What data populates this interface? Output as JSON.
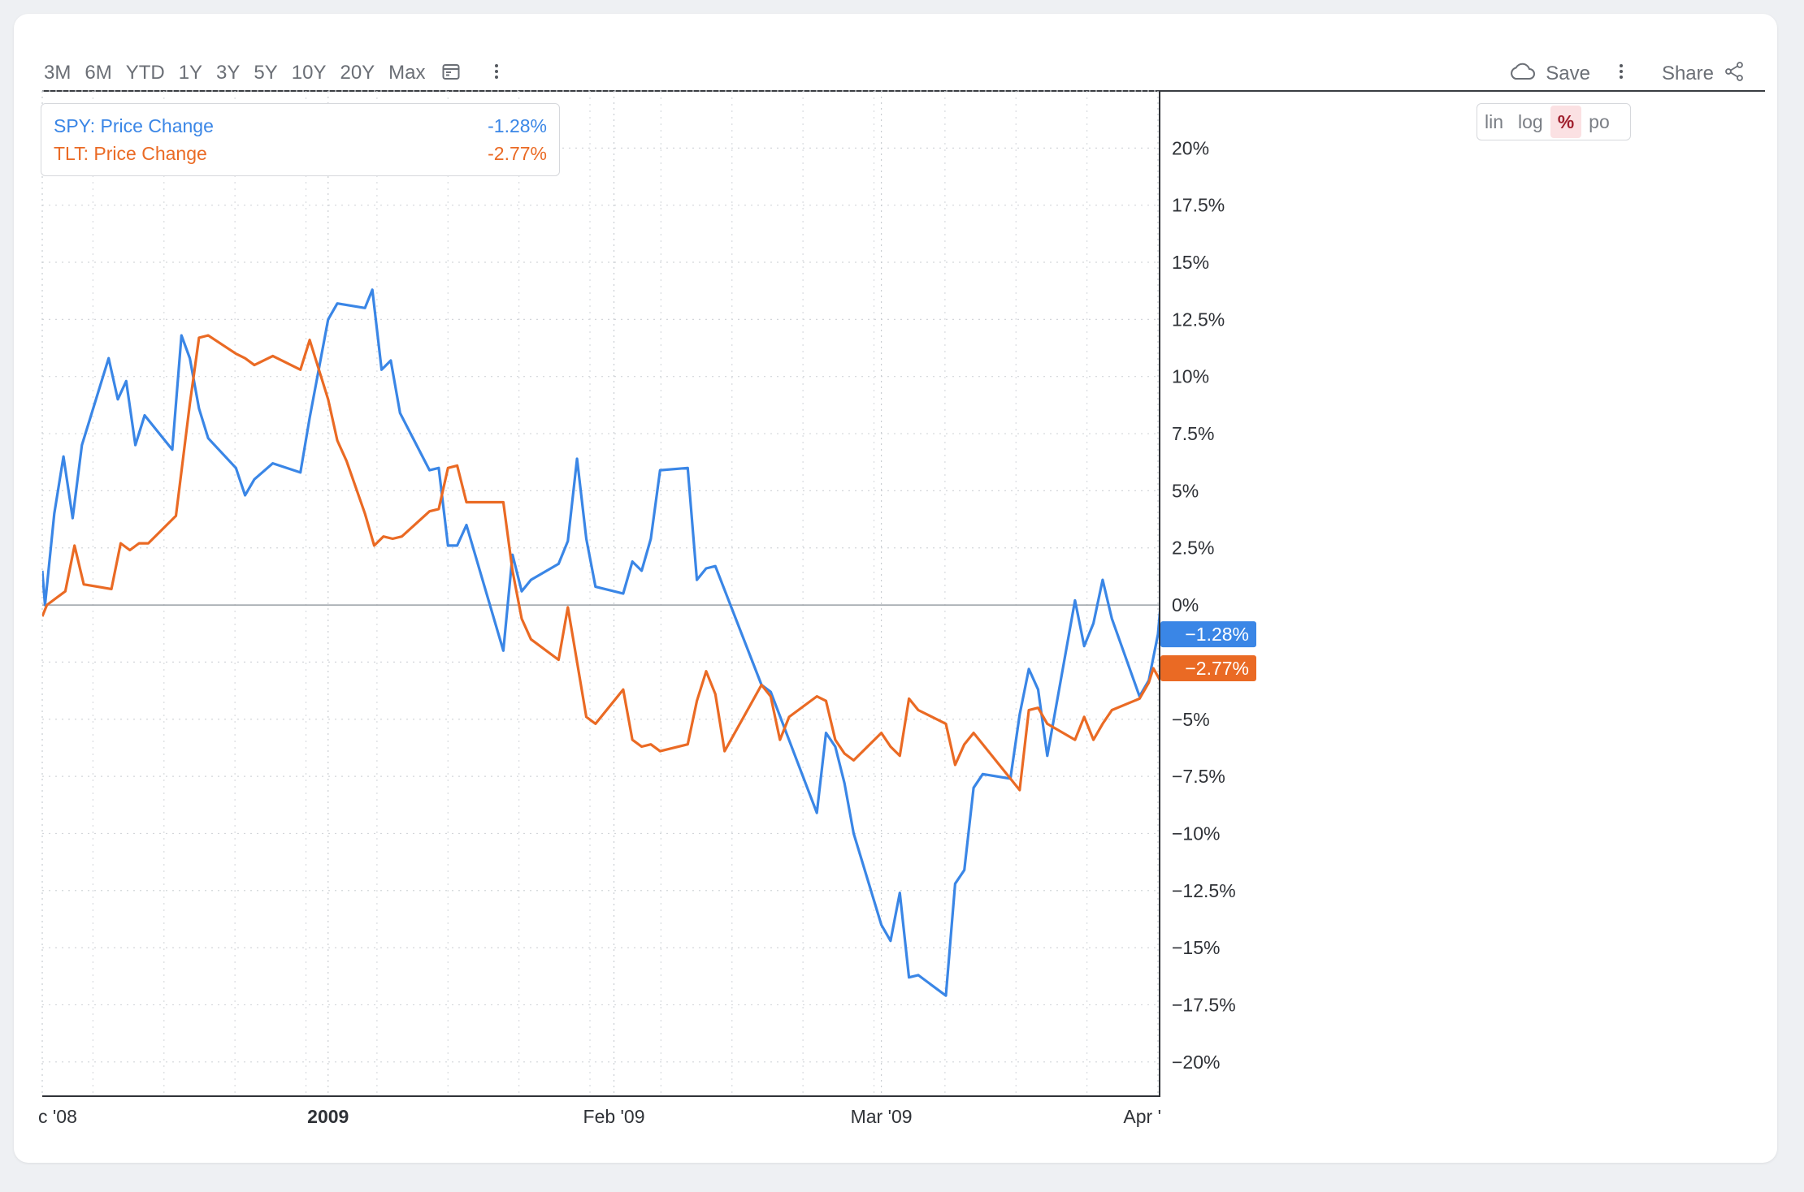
{
  "toolbar": {
    "ranges": [
      "3M",
      "6M",
      "YTD",
      "1Y",
      "3Y",
      "5Y",
      "10Y",
      "20Y",
      "Max"
    ],
    "save_label": "Save",
    "share_label": "Share"
  },
  "legend": {
    "items": [
      {
        "name": "SPY: Price Change",
        "value": "-1.28%",
        "color": "#3a86e6"
      },
      {
        "name": "TLT: Price Change",
        "value": "-2.77%",
        "color": "#ea6a24"
      }
    ]
  },
  "scale_options": [
    "lin",
    "log",
    "%",
    "po"
  ],
  "active_scale": "%",
  "chart_data": {
    "type": "line",
    "title": "",
    "xlabel": "",
    "ylabel": "",
    "x_tick_labels": [
      "c '08",
      "2009",
      "Feb '09",
      "Mar '09",
      "Apr '"
    ],
    "y_ticks": [
      "20%",
      "17.5%",
      "15%",
      "12.5%",
      "10%",
      "7.5%",
      "5%",
      "2.5%",
      "0%",
      "−5%",
      "−7.5%",
      "−10%",
      "−12.5%",
      "−15%",
      "−17.5%",
      "−20%"
    ],
    "y_tick_values": [
      20,
      17.5,
      15,
      12.5,
      10,
      7.5,
      5,
      2.5,
      0,
      -5,
      -7.5,
      -10,
      -12.5,
      -15,
      -17.5,
      -20
    ],
    "ylim": [
      -21.5,
      22.5
    ],
    "x_range": [
      0,
      121
    ],
    "x_tick_positions": [
      0,
      31,
      62,
      91,
      121
    ],
    "baseline": 0,
    "grid": true,
    "legend_position": "top-left",
    "series": [
      {
        "name": "SPY: Price Change",
        "color": "#3a86e6",
        "last_label": "−1.28%",
        "last_value": -1.28,
        "points": [
          [
            0,
            1.5
          ],
          [
            0.3,
            0
          ],
          [
            1.3,
            4
          ],
          [
            2.3,
            6.5
          ],
          [
            3.3,
            3.8
          ],
          [
            4.3,
            7
          ],
          [
            7.2,
            10.8
          ],
          [
            8.2,
            9
          ],
          [
            9.1,
            9.8
          ],
          [
            10.1,
            7
          ],
          [
            11.1,
            8.3
          ],
          [
            14.1,
            6.8
          ],
          [
            15.1,
            11.8
          ],
          [
            16,
            10.8
          ],
          [
            17,
            8.6
          ],
          [
            18,
            7.3
          ],
          [
            21,
            6
          ],
          [
            22,
            4.8
          ],
          [
            23,
            5.5
          ],
          [
            25,
            6.2
          ],
          [
            28,
            5.8
          ],
          [
            29,
            8.2
          ],
          [
            31,
            12.5
          ],
          [
            32,
            13.2
          ],
          [
            35,
            13
          ],
          [
            35.8,
            13.8
          ],
          [
            36.8,
            10.3
          ],
          [
            37.8,
            10.7
          ],
          [
            38.8,
            8.4
          ],
          [
            42,
            5.9
          ],
          [
            43,
            6
          ],
          [
            44,
            2.6
          ],
          [
            45,
            2.6
          ],
          [
            46,
            3.5
          ],
          [
            50,
            -2
          ],
          [
            51,
            2.2
          ],
          [
            52,
            0.6
          ],
          [
            53,
            1.1
          ],
          [
            56,
            1.8
          ],
          [
            57,
            2.8
          ],
          [
            58,
            6.4
          ],
          [
            59,
            2.9
          ],
          [
            60,
            0.8
          ],
          [
            63,
            0.5
          ],
          [
            64,
            1.9
          ],
          [
            65,
            1.5
          ],
          [
            66,
            2.9
          ],
          [
            67,
            5.9
          ],
          [
            70,
            6
          ],
          [
            71,
            1.1
          ],
          [
            72,
            1.6
          ],
          [
            73,
            1.7
          ],
          [
            78,
            -3.5
          ],
          [
            79,
            -3.8
          ],
          [
            84,
            -9.1
          ],
          [
            85,
            -5.6
          ],
          [
            86,
            -6.2
          ],
          [
            87,
            -7.8
          ],
          [
            88,
            -10
          ],
          [
            91,
            -14
          ],
          [
            92,
            -14.7
          ],
          [
            93,
            -12.6
          ],
          [
            94,
            -16.3
          ],
          [
            95,
            -16.2
          ],
          [
            98,
            -17.1
          ],
          [
            99,
            -12.2
          ],
          [
            100,
            -11.6
          ],
          [
            101,
            -8
          ],
          [
            102,
            -7.4
          ],
          [
            105,
            -7.6
          ],
          [
            106,
            -4.8
          ],
          [
            107,
            -2.8
          ],
          [
            108,
            -3.7
          ],
          [
            109,
            -6.6
          ],
          [
            112,
            0.2
          ],
          [
            113,
            -1.8
          ],
          [
            114,
            -0.8
          ],
          [
            115,
            1.1
          ],
          [
            116,
            -0.6
          ],
          [
            119,
            -4
          ],
          [
            120,
            -3.3
          ],
          [
            121,
            -1.28
          ],
          [
            121.5,
            1
          ]
        ]
      },
      {
        "name": "TLT: Price Change",
        "color": "#ea6a24",
        "last_label": "−2.77%",
        "last_value": -2.77,
        "points": [
          [
            0,
            -0.5
          ],
          [
            0.5,
            0
          ],
          [
            1.5,
            0.3
          ],
          [
            2.5,
            0.6
          ],
          [
            3.5,
            2.6
          ],
          [
            4.5,
            0.9
          ],
          [
            7.5,
            0.7
          ],
          [
            8.5,
            2.7
          ],
          [
            9.5,
            2.4
          ],
          [
            10.5,
            2.7
          ],
          [
            11.5,
            2.7
          ],
          [
            14.5,
            3.9
          ],
          [
            16,
            8.8
          ],
          [
            17,
            11.7
          ],
          [
            18,
            11.8
          ],
          [
            21,
            11
          ],
          [
            22,
            10.8
          ],
          [
            23,
            10.5
          ],
          [
            25,
            10.9
          ],
          [
            28,
            10.3
          ],
          [
            29,
            11.6
          ],
          [
            31,
            9
          ],
          [
            32,
            7.2
          ],
          [
            33,
            6.3
          ],
          [
            35,
            4
          ],
          [
            36,
            2.6
          ],
          [
            37,
            3
          ],
          [
            38,
            2.9
          ],
          [
            39,
            3
          ],
          [
            42,
            4.1
          ],
          [
            43,
            4.2
          ],
          [
            44,
            6
          ],
          [
            45,
            6.1
          ],
          [
            46,
            4.5
          ],
          [
            50,
            4.5
          ],
          [
            51,
            1.5
          ],
          [
            52,
            -0.6
          ],
          [
            53,
            -1.5
          ],
          [
            56,
            -2.4
          ],
          [
            57,
            -0.1
          ],
          [
            59,
            -4.9
          ],
          [
            60,
            -5.2
          ],
          [
            63,
            -3.7
          ],
          [
            64,
            -5.9
          ],
          [
            65,
            -6.2
          ],
          [
            66,
            -6.1
          ],
          [
            67,
            -6.4
          ],
          [
            70,
            -6.1
          ],
          [
            71,
            -4.2
          ],
          [
            72,
            -2.9
          ],
          [
            73,
            -3.9
          ],
          [
            74,
            -6.4
          ],
          [
            78,
            -3.5
          ],
          [
            79,
            -4
          ],
          [
            80,
            -5.9
          ],
          [
            81,
            -4.9
          ],
          [
            84,
            -4
          ],
          [
            85,
            -4.2
          ],
          [
            86,
            -5.9
          ],
          [
            87,
            -6.5
          ],
          [
            88,
            -6.8
          ],
          [
            91,
            -5.6
          ],
          [
            92,
            -6.2
          ],
          [
            93,
            -6.6
          ],
          [
            94,
            -4.1
          ],
          [
            95,
            -4.6
          ],
          [
            98,
            -5.2
          ],
          [
            99,
            -7
          ],
          [
            100,
            -6.1
          ],
          [
            101,
            -5.6
          ],
          [
            105,
            -7.6
          ],
          [
            106,
            -8.1
          ],
          [
            107,
            -4.6
          ],
          [
            108,
            -4.5
          ],
          [
            109,
            -5.2
          ],
          [
            112,
            -5.9
          ],
          [
            113,
            -4.9
          ],
          [
            114,
            -5.9
          ],
          [
            115,
            -5.2
          ],
          [
            116,
            -4.6
          ],
          [
            119,
            -4.1
          ],
          [
            120,
            -3.4
          ],
          [
            120.5,
            -2.77
          ],
          [
            121.5,
            -3.5
          ]
        ]
      }
    ]
  }
}
